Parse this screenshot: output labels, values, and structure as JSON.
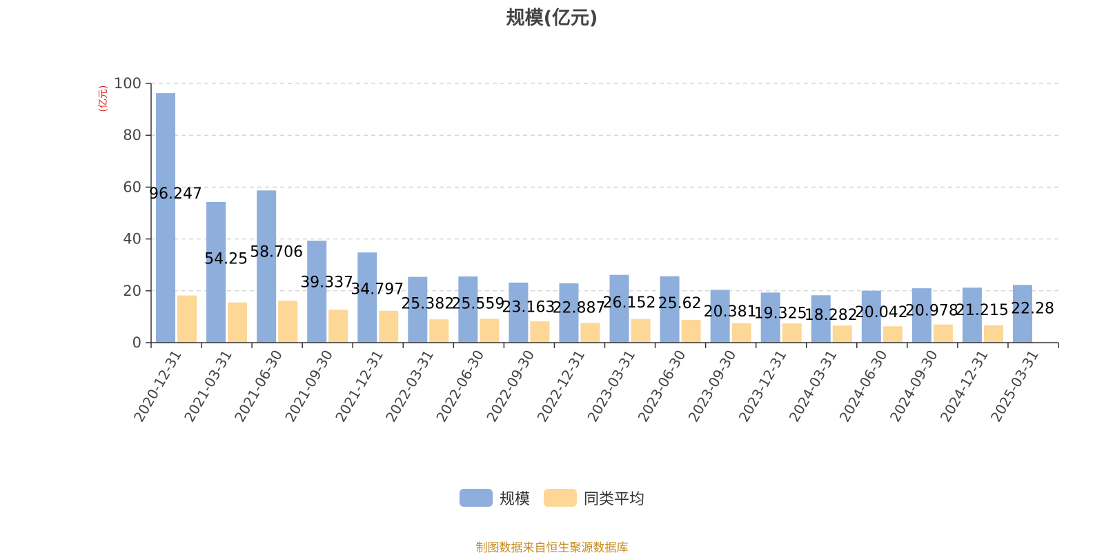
{
  "chart_data": {
    "type": "bar",
    "title": "规模(亿元)",
    "ylabel": "(亿元)",
    "xlabel": "",
    "ylim": [
      0,
      100
    ],
    "yticks": [
      0,
      20,
      40,
      60,
      80,
      100
    ],
    "grid": true,
    "legend_position": "bottom-center",
    "categories": [
      "2020-12-31",
      "2021-03-31",
      "2021-06-30",
      "2021-09-30",
      "2021-12-31",
      "2022-03-31",
      "2022-06-30",
      "2022-09-30",
      "2022-12-31",
      "2023-03-31",
      "2023-06-30",
      "2023-09-30",
      "2023-12-31",
      "2024-03-31",
      "2024-06-30",
      "2024-09-30",
      "2024-12-31",
      "2025-03-31"
    ],
    "series": [
      {
        "name": "规模",
        "color": "#8eaedb",
        "values": [
          96.247,
          54.25,
          58.706,
          39.337,
          34.797,
          25.382,
          25.559,
          23.163,
          22.887,
          26.152,
          25.62,
          20.381,
          19.325,
          18.282,
          20.042,
          20.978,
          21.215,
          22.28
        ],
        "labels": [
          "96.247",
          "54.25",
          "58.706",
          "39.337",
          "34.797",
          "25.382",
          "25.559",
          "23.163",
          "22.887",
          "26.152",
          "25.62",
          "20.381",
          "19.325",
          "18.282",
          "20.042",
          "20.978",
          "21.215",
          "22.28"
        ]
      },
      {
        "name": "同类平均",
        "color": "#fdd796",
        "values": [
          18.2,
          15.5,
          16.2,
          12.7,
          12.3,
          9.0,
          9.2,
          8.2,
          7.6,
          9.1,
          8.8,
          7.5,
          7.4,
          6.6,
          6.3,
          7.0,
          6.7,
          null
        ]
      }
    ],
    "source_note": "制图数据来自恒生聚源数据库"
  }
}
